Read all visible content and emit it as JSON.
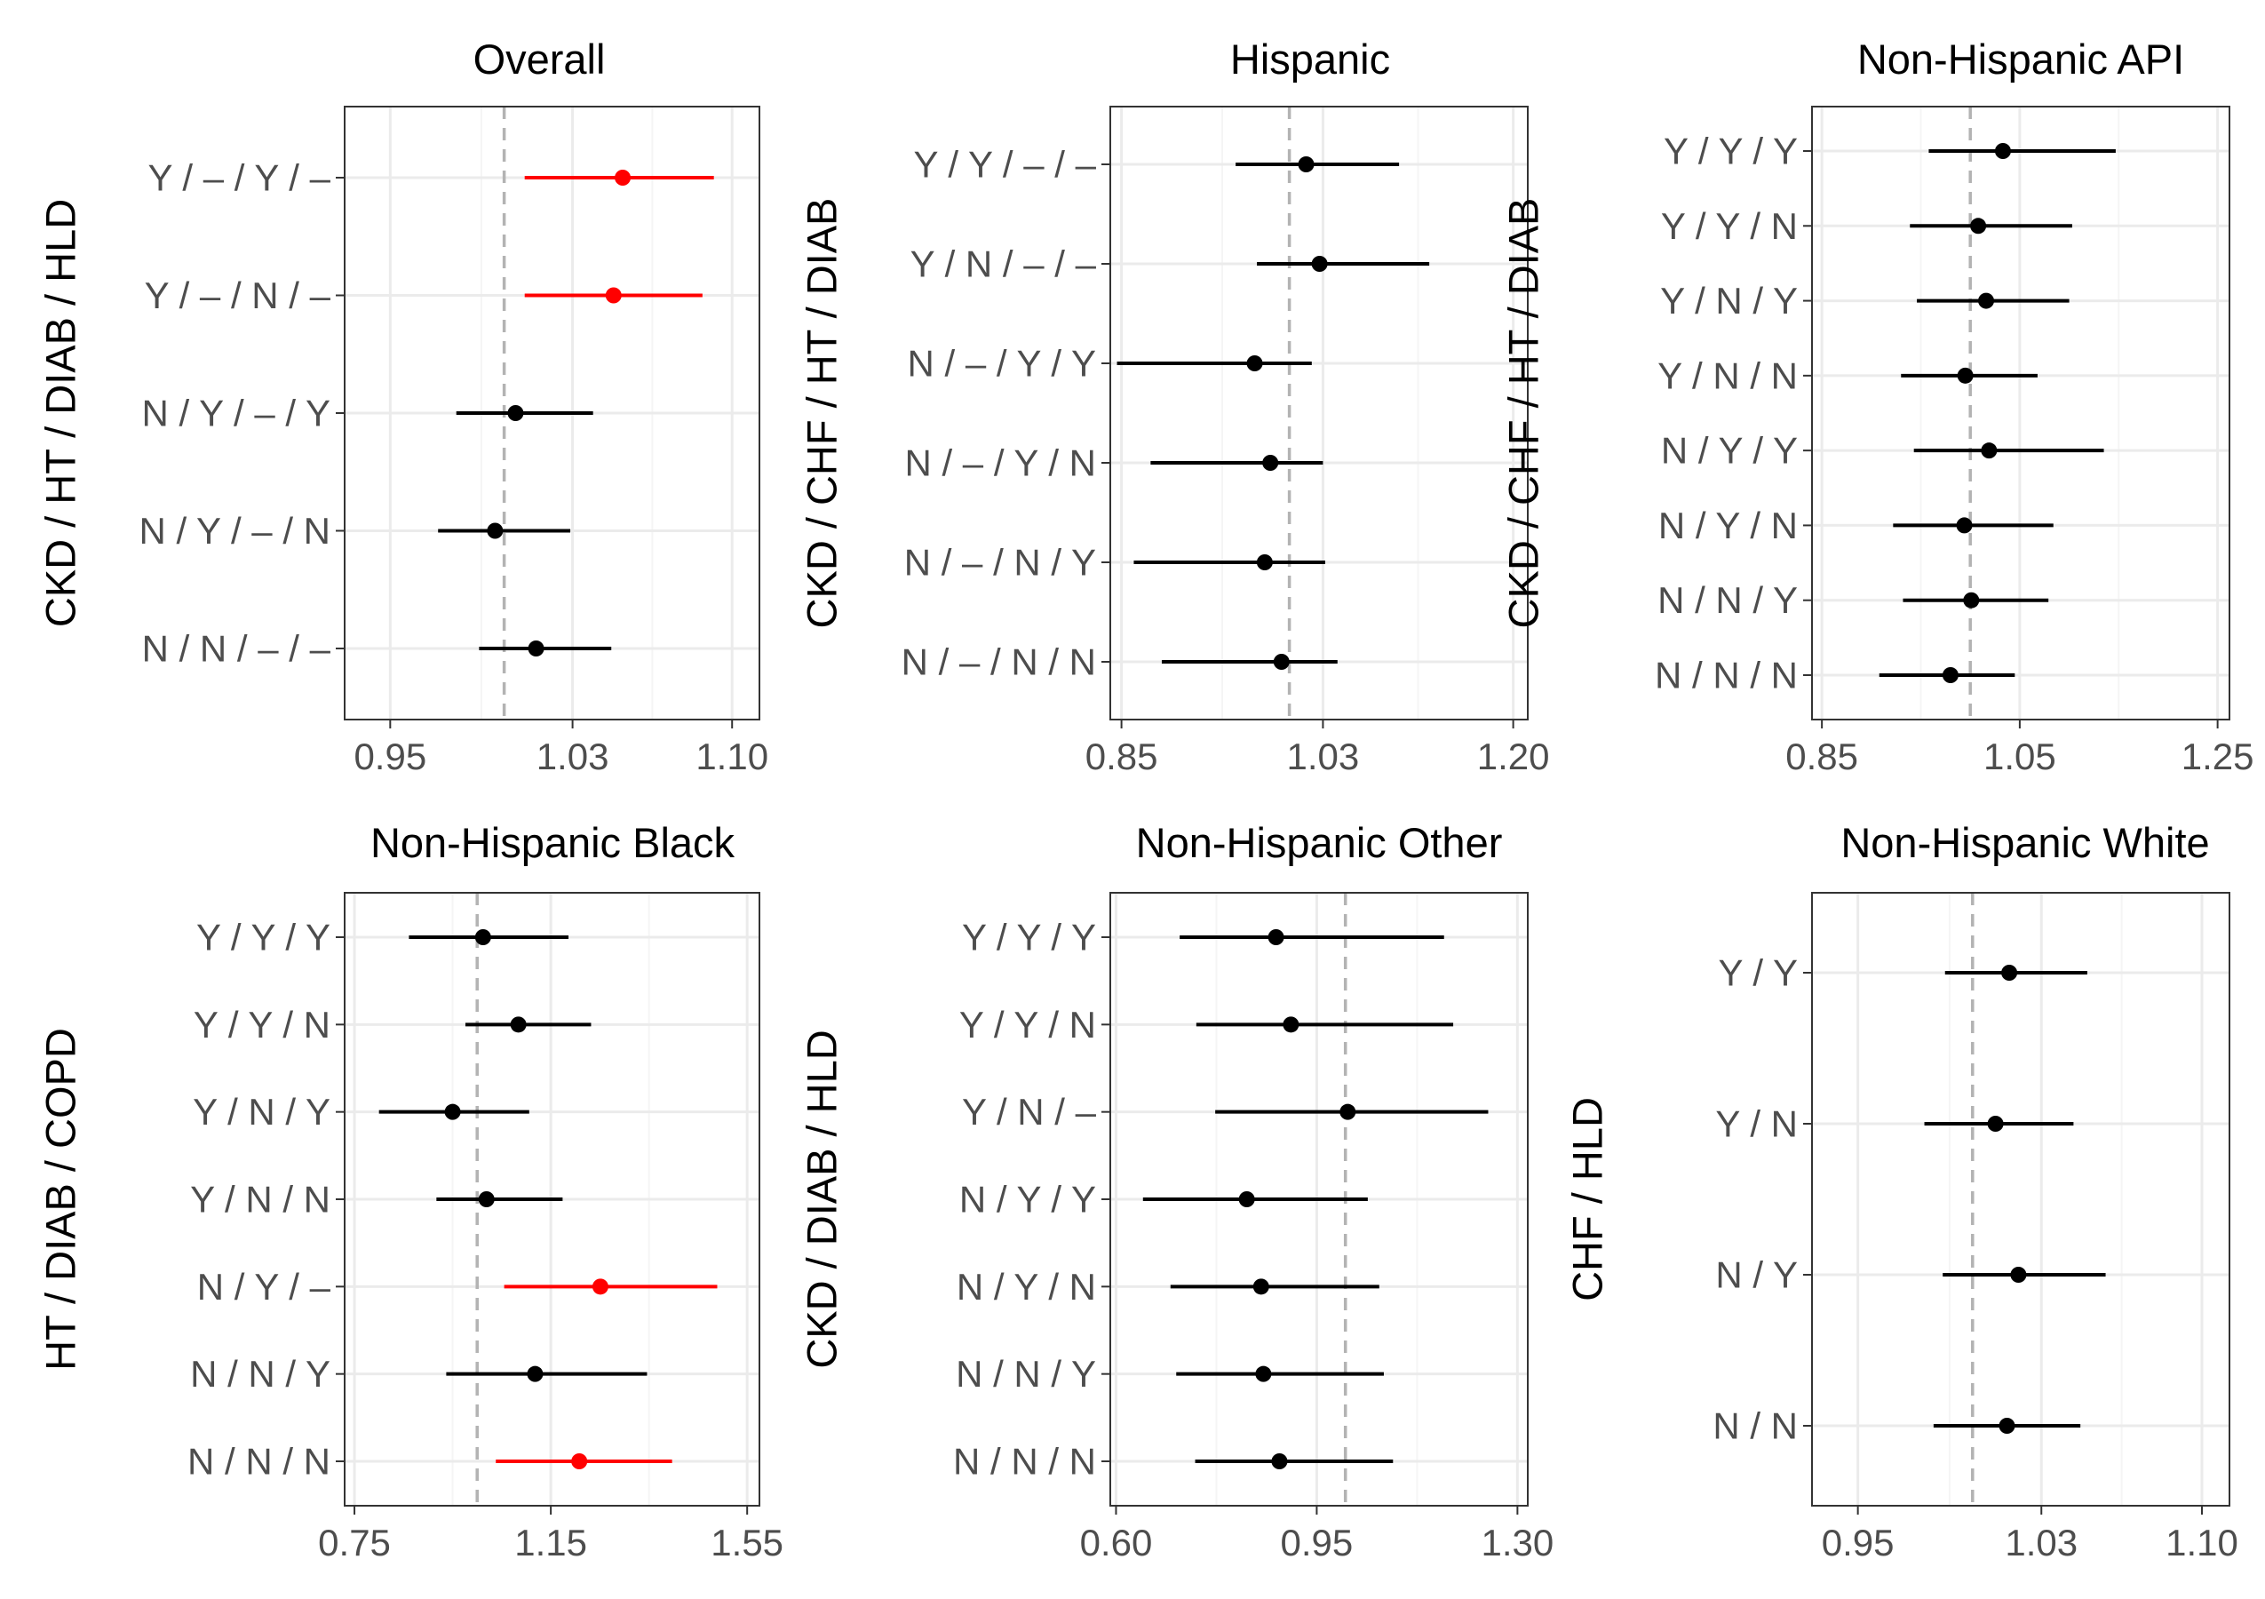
{
  "colors": {
    "significant": "#ff0000",
    "normal": "#000000",
    "refline": "#b3b3b3",
    "grid_major": "#ebebeb",
    "grid_minor": "#f5f5f5",
    "panel_border": "#333333"
  },
  "chart_data": [
    {
      "type": "forest",
      "title": "Overall",
      "ylabel": "CKD / HT / DIAB / HLD",
      "xlim": [
        0.93,
        1.112
      ],
      "xticks": [
        0.95,
        1.03,
        1.1
      ],
      "xtick_labels": [
        "0.95",
        "1.03",
        "1.10"
      ],
      "ref": 1.0,
      "categories": [
        "Y / – / Y / –",
        "Y / – / N / –",
        "N / Y / – / Y",
        "N / Y / – / N",
        "N / N / – / –"
      ],
      "estimates": [
        1.052,
        1.048,
        1.005,
        0.996,
        1.014
      ],
      "lower": [
        1.009,
        1.009,
        0.979,
        0.971,
        0.989
      ],
      "upper": [
        1.092,
        1.087,
        1.039,
        1.029,
        1.047
      ],
      "significant": [
        true,
        true,
        false,
        false,
        false
      ]
    },
    {
      "type": "forest",
      "title": "Hispanic",
      "ylabel": "CKD / CHF / HT / DIAB",
      "xlim": [
        0.84,
        1.213
      ],
      "xticks": [
        0.85,
        1.03,
        1.2
      ],
      "xtick_labels": [
        "0.85",
        "1.03",
        "1.20"
      ],
      "ref": 1.0,
      "categories": [
        "Y / Y / – / –",
        "Y / N / – / –",
        "N / – / Y / Y",
        "N / – / Y / N",
        "N / – / N / Y",
        "N / – / N / N"
      ],
      "estimates": [
        1.015,
        1.027,
        0.969,
        0.983,
        0.978,
        0.993
      ],
      "lower": [
        0.952,
        0.971,
        0.846,
        0.876,
        0.861,
        0.886
      ],
      "upper": [
        1.098,
        1.125,
        1.02,
        1.03,
        1.032,
        1.043
      ],
      "significant": [
        false,
        false,
        false,
        false,
        false,
        false
      ]
    },
    {
      "type": "forest",
      "title": "Non-Hispanic API",
      "ylabel": "CKD / CHF / HT / DIAB",
      "xlim": [
        0.84,
        1.262
      ],
      "xticks": [
        0.85,
        1.05,
        1.25
      ],
      "xtick_labels": [
        "0.85",
        "1.05",
        "1.25"
      ],
      "ref": 1.0,
      "categories": [
        "Y / Y / Y",
        "Y / Y / N",
        "Y / N / Y",
        "Y / N / N",
        "N / Y / Y",
        "N / Y / N",
        "N / N / Y",
        "N / N / N"
      ],
      "estimates": [
        1.033,
        1.008,
        1.016,
        0.995,
        1.019,
        0.994,
        1.001,
        0.98
      ],
      "lower": [
        0.958,
        0.939,
        0.946,
        0.93,
        0.943,
        0.922,
        0.932,
        0.908
      ],
      "upper": [
        1.147,
        1.103,
        1.1,
        1.068,
        1.135,
        1.084,
        1.079,
        1.045
      ],
      "significant": [
        false,
        false,
        false,
        false,
        false,
        false,
        false,
        false
      ]
    },
    {
      "type": "forest",
      "title": "Non-Hispanic Black",
      "ylabel": "HT / DIAB / COPD",
      "xlim": [
        0.73,
        1.575
      ],
      "xticks": [
        0.75,
        1.15,
        1.55
      ],
      "xtick_labels": [
        "0.75",
        "1.15",
        "1.55"
      ],
      "ref": 1.0,
      "categories": [
        "Y / Y / Y",
        "Y / Y / N",
        "Y / N / Y",
        "Y / N / N",
        "N / Y / –",
        "N / N / Y",
        "N / N / N"
      ],
      "estimates": [
        1.012,
        1.084,
        0.95,
        1.019,
        1.251,
        1.118,
        1.208
      ],
      "lower": [
        0.861,
        0.976,
        0.8,
        0.917,
        1.055,
        0.937,
        1.038
      ],
      "upper": [
        1.186,
        1.232,
        1.106,
        1.174,
        1.489,
        1.346,
        1.397
      ],
      "significant": [
        false,
        false,
        false,
        false,
        true,
        false,
        true
      ]
    },
    {
      "type": "forest",
      "title": "Non-Hispanic Other",
      "ylabel": "CKD / DIAB / HLD",
      "xlim": [
        0.59,
        1.318
      ],
      "xticks": [
        0.6,
        0.95,
        1.3
      ],
      "xtick_labels": [
        "0.60",
        "0.95",
        "1.30"
      ],
      "ref": 1.0,
      "categories": [
        "Y / Y / Y",
        "Y / Y / N",
        "Y / N / –",
        "N / Y / Y",
        "N / Y / N",
        "N / N / Y",
        "N / N / N"
      ],
      "estimates": [
        0.879,
        0.905,
        1.004,
        0.828,
        0.853,
        0.857,
        0.885
      ],
      "lower": [
        0.711,
        0.74,
        0.773,
        0.647,
        0.695,
        0.705,
        0.738
      ],
      "upper": [
        1.172,
        1.188,
        1.249,
        1.039,
        1.059,
        1.067,
        1.083
      ],
      "significant": [
        false,
        false,
        false,
        false,
        false,
        false,
        false
      ]
    },
    {
      "type": "forest",
      "title": "Non-Hispanic White",
      "ylabel": "CHF / HLD",
      "xlim": [
        0.93,
        1.112
      ],
      "xticks": [
        0.95,
        1.03,
        1.1
      ],
      "xtick_labels": [
        "0.95",
        "1.03",
        "1.10"
      ],
      "ref": 1.0,
      "categories": [
        "Y / Y",
        "Y / N",
        "N / Y",
        "N / N"
      ],
      "estimates": [
        1.016,
        1.01,
        1.02,
        1.015
      ],
      "lower": [
        0.988,
        0.979,
        0.987,
        0.983
      ],
      "upper": [
        1.05,
        1.044,
        1.058,
        1.047
      ],
      "significant": [
        false,
        false,
        false,
        false
      ]
    }
  ]
}
